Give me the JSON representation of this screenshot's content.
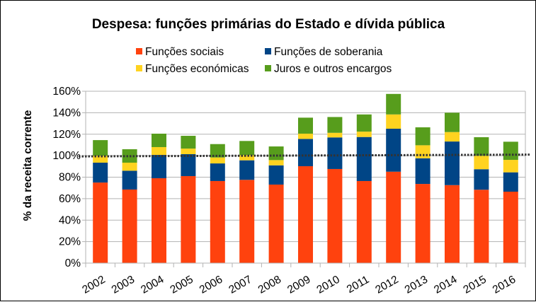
{
  "chart_data": {
    "type": "bar",
    "stacked": true,
    "title": "Despesa: funções primárias do Estado e dívida pública",
    "xlabel": "",
    "ylabel": "% da receita corrente",
    "ylim": [
      0,
      160
    ],
    "yticks": [
      0,
      20,
      40,
      60,
      80,
      100,
      120,
      140,
      160
    ],
    "ytick_format": "%",
    "grid": true,
    "legend_position": "top-center",
    "categories": [
      "2002",
      "2003",
      "2004",
      "2005",
      "2006",
      "2007",
      "2008",
      "2009",
      "2010",
      "2011",
      "2012",
      "2013",
      "2014",
      "2015",
      "2016"
    ],
    "series": [
      {
        "name": "Funções sociais",
        "color": "#ff420e",
        "values": [
          75,
          68.5,
          79,
          81,
          76.4,
          77.5,
          73.1,
          90.2,
          87.6,
          76.4,
          85.1,
          73.7,
          72.6,
          68.3,
          66.5
        ]
      },
      {
        "name": "Funções de soberania",
        "color": "#004586",
        "values": [
          18.5,
          17.5,
          21.7,
          20.4,
          16.4,
          18.2,
          17.9,
          25.4,
          29.4,
          41,
          40,
          23.9,
          40.6,
          19.1,
          18
        ]
      },
      {
        "name": "Funções económicas",
        "color": "#ffd320",
        "values": [
          6.5,
          7.5,
          7.3,
          5.2,
          5.5,
          4.8,
          4.9,
          4.9,
          4.3,
          5,
          13.3,
          12.1,
          8.8,
          12.5,
          11.6
        ]
      },
      {
        "name": "Juros e outros encargos",
        "color": "#579d1c",
        "values": [
          14.5,
          12.5,
          12.5,
          11.9,
          12.5,
          13.2,
          12.7,
          14.9,
          14.7,
          16,
          19.1,
          16.7,
          18,
          17.3,
          16.9
        ]
      }
    ],
    "reference_line": {
      "value": 100,
      "style": "dotted",
      "color": "#333333"
    },
    "legend_order": [
      0,
      1,
      2,
      3
    ]
  }
}
